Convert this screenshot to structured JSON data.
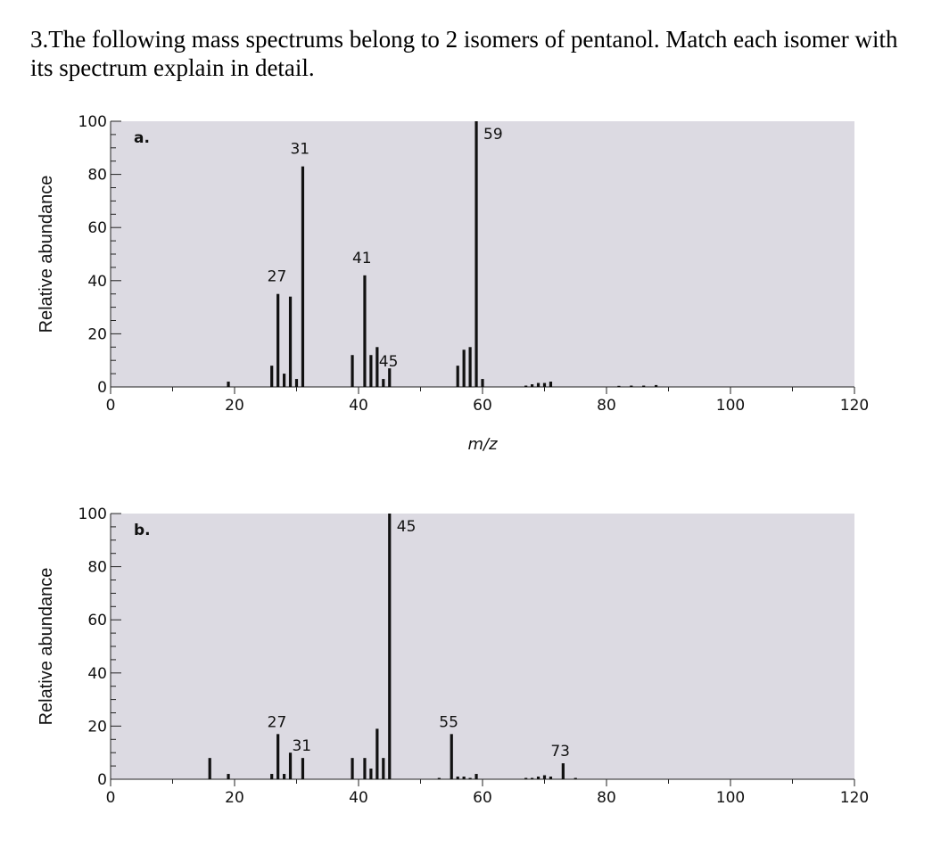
{
  "question": "3.The following mass spectrums belong to 2 isomers of pentanol. Match each isomer with its spectrum explain in detail.",
  "chart_data": [
    {
      "type": "bar",
      "panel_label": "a.",
      "xlabel": "m/z",
      "ylabel": "Relative abundance",
      "xlim": [
        0,
        120
      ],
      "ylim": [
        0,
        100
      ],
      "x_ticks": [
        0,
        20,
        40,
        60,
        80,
        100,
        120
      ],
      "y_ticks": [
        0,
        20,
        40,
        60,
        80,
        100
      ],
      "grid": false,
      "peaks": [
        {
          "x": 19,
          "y": 2
        },
        {
          "x": 26,
          "y": 8
        },
        {
          "x": 27,
          "y": 35,
          "label": "27"
        },
        {
          "x": 28,
          "y": 5
        },
        {
          "x": 29,
          "y": 34
        },
        {
          "x": 30,
          "y": 3
        },
        {
          "x": 31,
          "y": 83,
          "label": "31"
        },
        {
          "x": 39,
          "y": 12
        },
        {
          "x": 41,
          "y": 42,
          "label": "41"
        },
        {
          "x": 42,
          "y": 12
        },
        {
          "x": 43,
          "y": 15
        },
        {
          "x": 44,
          "y": 3
        },
        {
          "x": 45,
          "y": 7,
          "label": "45"
        },
        {
          "x": 56,
          "y": 8
        },
        {
          "x": 57,
          "y": 14
        },
        {
          "x": 58,
          "y": 15
        },
        {
          "x": 59,
          "y": 100,
          "label": "59"
        },
        {
          "x": 60,
          "y": 3
        },
        {
          "x": 67,
          "y": 0.5
        },
        {
          "x": 68,
          "y": 1
        },
        {
          "x": 69,
          "y": 1.5
        },
        {
          "x": 70,
          "y": 1.5
        },
        {
          "x": 71,
          "y": 2
        },
        {
          "x": 82,
          "y": 0.4
        },
        {
          "x": 84,
          "y": 0.5
        },
        {
          "x": 86,
          "y": 0.5
        },
        {
          "x": 88,
          "y": 0.7
        }
      ]
    },
    {
      "type": "bar",
      "panel_label": "b.",
      "xlabel": "",
      "ylabel": "Relative abundance",
      "xlim": [
        0,
        120
      ],
      "ylim": [
        0,
        100
      ],
      "x_ticks": [
        0,
        20,
        40,
        60,
        80,
        100,
        120
      ],
      "y_ticks": [
        0,
        20,
        40,
        60,
        80,
        100
      ],
      "grid": false,
      "peaks": [
        {
          "x": 16,
          "y": 8
        },
        {
          "x": 19,
          "y": 2
        },
        {
          "x": 26,
          "y": 2
        },
        {
          "x": 27,
          "y": 17,
          "label": "27"
        },
        {
          "x": 28,
          "y": 2
        },
        {
          "x": 29,
          "y": 10
        },
        {
          "x": 31,
          "y": 8,
          "label": "31"
        },
        {
          "x": 39,
          "y": 8
        },
        {
          "x": 41,
          "y": 8
        },
        {
          "x": 42,
          "y": 4
        },
        {
          "x": 43,
          "y": 19
        },
        {
          "x": 44,
          "y": 8
        },
        {
          "x": 45,
          "y": 100,
          "label": "45"
        },
        {
          "x": 53,
          "y": 0.5
        },
        {
          "x": 55,
          "y": 17,
          "label": "55"
        },
        {
          "x": 56,
          "y": 1
        },
        {
          "x": 57,
          "y": 1
        },
        {
          "x": 58,
          "y": 0.5
        },
        {
          "x": 59,
          "y": 2
        },
        {
          "x": 67,
          "y": 0.5
        },
        {
          "x": 68,
          "y": 0.5
        },
        {
          "x": 69,
          "y": 1
        },
        {
          "x": 70,
          "y": 1.5
        },
        {
          "x": 71,
          "y": 1
        },
        {
          "x": 73,
          "y": 6,
          "label": "73"
        },
        {
          "x": 75,
          "y": 0.5
        }
      ]
    }
  ]
}
